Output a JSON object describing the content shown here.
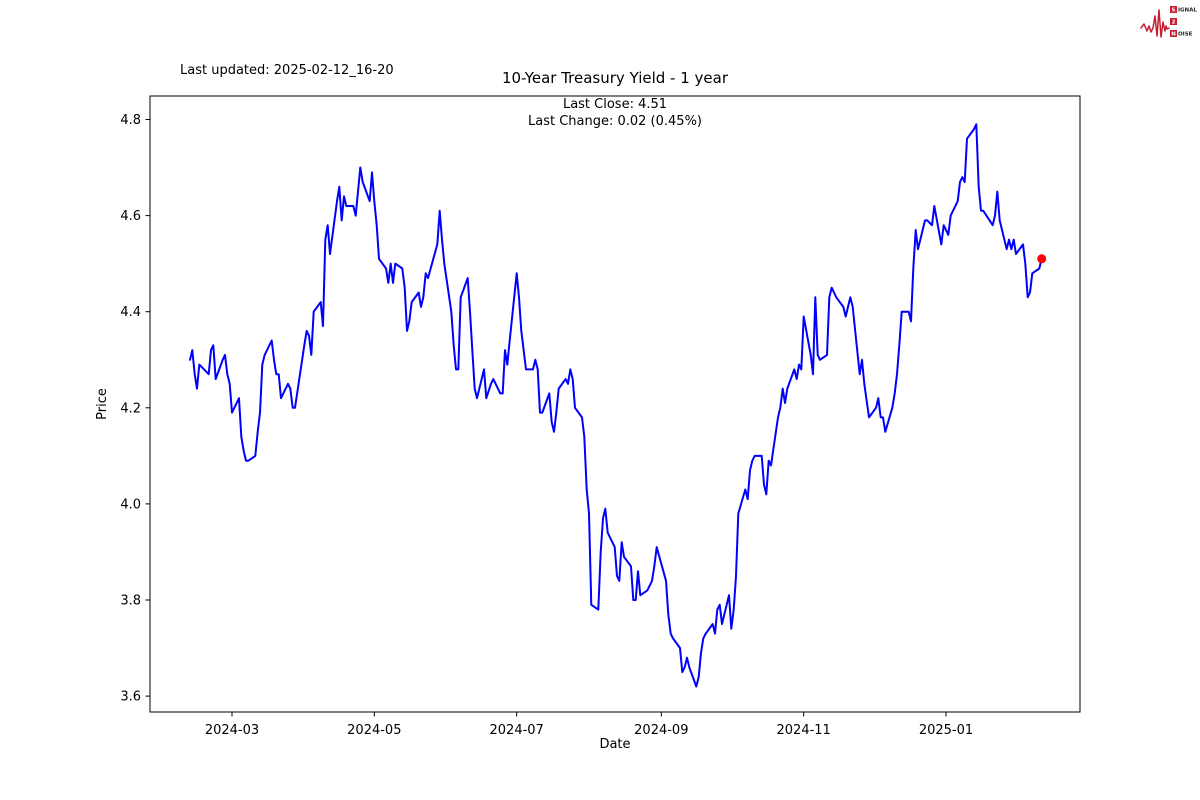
{
  "header": {
    "last_updated": "Last updated: 2025-02-12_16-20",
    "title": "10-Year Treasury Yield - 1 year",
    "subtitle_close": "Last Close: 4.51",
    "subtitle_change": "Last Change: 0.02 (0.45%)"
  },
  "logo": {
    "brand_top_initial": "S",
    "brand_top_rest": "IGNAL",
    "brand_mid": "2",
    "brand_bottom_initial": "N",
    "brand_bottom_rest": "OISE",
    "accent_color": "#c41e2f",
    "icon": "ecg-waveform-icon"
  },
  "chart_data": {
    "type": "line",
    "title": "10-Year Treasury Yield - 1 year",
    "xlabel": "Date",
    "ylabel": "Price",
    "grid": false,
    "legend": "none",
    "line_color": "#0000ff",
    "last_point_marker_color": "#ff0000",
    "last_close": 4.51,
    "last_change": 0.02,
    "last_change_pct": "0.45%",
    "ylim": [
      3.56,
      4.85
    ],
    "y_ticks": [
      3.6,
      3.8,
      4.0,
      4.2,
      4.4,
      4.6,
      4.8
    ],
    "x_ticks": [
      {
        "label": "2024-03",
        "date": "2024-03-01"
      },
      {
        "label": "2024-05",
        "date": "2024-05-01"
      },
      {
        "label": "2024-07",
        "date": "2024-07-01"
      },
      {
        "label": "2024-09",
        "date": "2024-09-01"
      },
      {
        "label": "2024-11",
        "date": "2024-11-01"
      },
      {
        "label": "2025-01",
        "date": "2025-01-01"
      }
    ],
    "series": [
      {
        "name": "10-Year Treasury Yield",
        "dates": [
          "2024-02-12",
          "2024-02-13",
          "2024-02-14",
          "2024-02-15",
          "2024-02-16",
          "2024-02-20",
          "2024-02-21",
          "2024-02-22",
          "2024-02-23",
          "2024-02-26",
          "2024-02-27",
          "2024-02-28",
          "2024-02-29",
          "2024-03-01",
          "2024-03-04",
          "2024-03-05",
          "2024-03-06",
          "2024-03-07",
          "2024-03-08",
          "2024-03-11",
          "2024-03-12",
          "2024-03-13",
          "2024-03-14",
          "2024-03-15",
          "2024-03-18",
          "2024-03-19",
          "2024-03-20",
          "2024-03-21",
          "2024-03-22",
          "2024-03-25",
          "2024-03-26",
          "2024-03-27",
          "2024-03-28",
          "2024-04-01",
          "2024-04-02",
          "2024-04-03",
          "2024-04-04",
          "2024-04-05",
          "2024-04-08",
          "2024-04-09",
          "2024-04-10",
          "2024-04-11",
          "2024-04-12",
          "2024-04-15",
          "2024-04-16",
          "2024-04-17",
          "2024-04-18",
          "2024-04-19",
          "2024-04-22",
          "2024-04-23",
          "2024-04-24",
          "2024-04-25",
          "2024-04-26",
          "2024-04-29",
          "2024-04-30",
          "2024-05-01",
          "2024-05-02",
          "2024-05-03",
          "2024-05-06",
          "2024-05-07",
          "2024-05-08",
          "2024-05-09",
          "2024-05-10",
          "2024-05-13",
          "2024-05-14",
          "2024-05-15",
          "2024-05-16",
          "2024-05-17",
          "2024-05-20",
          "2024-05-21",
          "2024-05-22",
          "2024-05-23",
          "2024-05-24",
          "2024-05-28",
          "2024-05-29",
          "2024-05-30",
          "2024-05-31",
          "2024-06-03",
          "2024-06-04",
          "2024-06-05",
          "2024-06-06",
          "2024-06-07",
          "2024-06-10",
          "2024-06-11",
          "2024-06-12",
          "2024-06-13",
          "2024-06-14",
          "2024-06-17",
          "2024-06-18",
          "2024-06-20",
          "2024-06-21",
          "2024-06-24",
          "2024-06-25",
          "2024-06-26",
          "2024-06-27",
          "2024-06-28",
          "2024-07-01",
          "2024-07-02",
          "2024-07-03",
          "2024-07-05",
          "2024-07-08",
          "2024-07-09",
          "2024-07-10",
          "2024-07-11",
          "2024-07-12",
          "2024-07-15",
          "2024-07-16",
          "2024-07-17",
          "2024-07-18",
          "2024-07-19",
          "2024-07-22",
          "2024-07-23",
          "2024-07-24",
          "2024-07-25",
          "2024-07-26",
          "2024-07-29",
          "2024-07-30",
          "2024-07-31",
          "2024-08-01",
          "2024-08-02",
          "2024-08-05",
          "2024-08-06",
          "2024-08-07",
          "2024-08-08",
          "2024-08-09",
          "2024-08-12",
          "2024-08-13",
          "2024-08-14",
          "2024-08-15",
          "2024-08-16",
          "2024-08-19",
          "2024-08-20",
          "2024-08-21",
          "2024-08-22",
          "2024-08-23",
          "2024-08-26",
          "2024-08-27",
          "2024-08-28",
          "2024-08-29",
          "2024-08-30",
          "2024-09-03",
          "2024-09-04",
          "2024-09-05",
          "2024-09-06",
          "2024-09-09",
          "2024-09-10",
          "2024-09-11",
          "2024-09-12",
          "2024-09-13",
          "2024-09-16",
          "2024-09-17",
          "2024-09-18",
          "2024-09-19",
          "2024-09-20",
          "2024-09-23",
          "2024-09-24",
          "2024-09-25",
          "2024-09-26",
          "2024-09-27",
          "2024-09-30",
          "2024-10-01",
          "2024-10-02",
          "2024-10-03",
          "2024-10-04",
          "2024-10-07",
          "2024-10-08",
          "2024-10-09",
          "2024-10-10",
          "2024-10-11",
          "2024-10-14",
          "2024-10-15",
          "2024-10-16",
          "2024-10-17",
          "2024-10-18",
          "2024-10-21",
          "2024-10-22",
          "2024-10-23",
          "2024-10-24",
          "2024-10-25",
          "2024-10-28",
          "2024-10-29",
          "2024-10-30",
          "2024-10-31",
          "2024-11-01",
          "2024-11-04",
          "2024-11-05",
          "2024-11-06",
          "2024-11-07",
          "2024-11-08",
          "2024-11-11",
          "2024-11-12",
          "2024-11-13",
          "2024-11-14",
          "2024-11-15",
          "2024-11-18",
          "2024-11-19",
          "2024-11-20",
          "2024-11-21",
          "2024-11-22",
          "2024-11-25",
          "2024-11-26",
          "2024-11-27",
          "2024-11-29",
          "2024-12-02",
          "2024-12-03",
          "2024-12-04",
          "2024-12-05",
          "2024-12-06",
          "2024-12-09",
          "2024-12-10",
          "2024-12-11",
          "2024-12-12",
          "2024-12-13",
          "2024-12-16",
          "2024-12-17",
          "2024-12-18",
          "2024-12-19",
          "2024-12-20",
          "2024-12-23",
          "2024-12-24",
          "2024-12-26",
          "2024-12-27",
          "2024-12-30",
          "2024-12-31",
          "2025-01-02",
          "2025-01-03",
          "2025-01-06",
          "2025-01-07",
          "2025-01-08",
          "2025-01-09",
          "2025-01-10",
          "2025-01-13",
          "2025-01-14",
          "2025-01-15",
          "2025-01-16",
          "2025-01-17",
          "2025-01-21",
          "2025-01-22",
          "2025-01-23",
          "2025-01-24",
          "2025-01-27",
          "2025-01-28",
          "2025-01-29",
          "2025-01-30",
          "2025-01-31",
          "2025-02-03",
          "2025-02-04",
          "2025-02-05",
          "2025-02-06",
          "2025-02-07",
          "2025-02-10",
          "2025-02-11"
        ],
        "values": [
          4.3,
          4.32,
          4.27,
          4.24,
          4.29,
          4.27,
          4.32,
          4.33,
          4.26,
          4.3,
          4.31,
          4.27,
          4.25,
          4.19,
          4.22,
          4.14,
          4.11,
          4.09,
          4.09,
          4.1,
          4.15,
          4.19,
          4.29,
          4.31,
          4.34,
          4.3,
          4.27,
          4.27,
          4.22,
          4.25,
          4.24,
          4.2,
          4.2,
          4.33,
          4.36,
          4.35,
          4.31,
          4.4,
          4.42,
          4.37,
          4.55,
          4.58,
          4.52,
          4.63,
          4.66,
          4.59,
          4.64,
          4.62,
          4.62,
          4.6,
          4.65,
          4.7,
          4.67,
          4.63,
          4.69,
          4.63,
          4.58,
          4.51,
          4.49,
          4.46,
          4.5,
          4.46,
          4.5,
          4.49,
          4.45,
          4.36,
          4.38,
          4.42,
          4.44,
          4.41,
          4.43,
          4.48,
          4.47,
          4.54,
          4.61,
          4.55,
          4.5,
          4.4,
          4.33,
          4.28,
          4.28,
          4.43,
          4.47,
          4.4,
          4.32,
          4.24,
          4.22,
          4.28,
          4.22,
          4.25,
          4.26,
          4.23,
          4.23,
          4.32,
          4.29,
          4.34,
          4.48,
          4.43,
          4.36,
          4.28,
          4.28,
          4.3,
          4.28,
          4.19,
          4.19,
          4.23,
          4.17,
          4.15,
          4.19,
          4.24,
          4.26,
          4.25,
          4.28,
          4.26,
          4.2,
          4.18,
          4.14,
          4.03,
          3.98,
          3.79,
          3.78,
          3.9,
          3.97,
          3.99,
          3.94,
          3.91,
          3.85,
          3.84,
          3.92,
          3.89,
          3.87,
          3.8,
          3.8,
          3.86,
          3.81,
          3.82,
          3.83,
          3.84,
          3.87,
          3.91,
          3.84,
          3.77,
          3.73,
          3.72,
          3.7,
          3.65,
          3.66,
          3.68,
          3.66,
          3.62,
          3.64,
          3.69,
          3.72,
          3.73,
          3.75,
          3.73,
          3.78,
          3.79,
          3.75,
          3.81,
          3.74,
          3.78,
          3.85,
          3.98,
          4.03,
          4.01,
          4.07,
          4.09,
          4.1,
          4.1,
          4.04,
          4.02,
          4.09,
          4.08,
          4.18,
          4.2,
          4.24,
          4.21,
          4.24,
          4.28,
          4.26,
          4.29,
          4.28,
          4.39,
          4.31,
          4.27,
          4.43,
          4.31,
          4.3,
          4.31,
          4.43,
          4.45,
          4.44,
          4.43,
          4.41,
          4.39,
          4.41,
          4.43,
          4.41,
          4.27,
          4.3,
          4.25,
          4.18,
          4.2,
          4.22,
          4.18,
          4.18,
          4.15,
          4.2,
          4.23,
          4.27,
          4.33,
          4.4,
          4.4,
          4.38,
          4.49,
          4.57,
          4.53,
          4.59,
          4.59,
          4.58,
          4.62,
          4.54,
          4.58,
          4.56,
          4.6,
          4.63,
          4.67,
          4.68,
          4.67,
          4.76,
          4.78,
          4.79,
          4.66,
          4.61,
          4.61,
          4.58,
          4.6,
          4.65,
          4.59,
          4.53,
          4.55,
          4.53,
          4.55,
          4.52,
          4.54,
          4.5,
          4.43,
          4.44,
          4.48,
          4.49,
          4.51
        ]
      }
    ]
  }
}
